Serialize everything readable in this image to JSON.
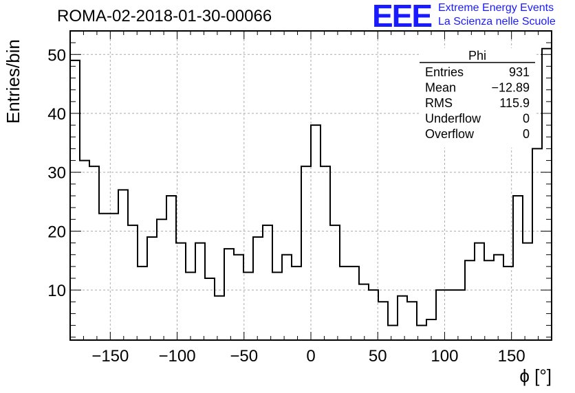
{
  "header": {
    "run_title": "ROMA-02-2018-01-30-00066",
    "logo_mark": "EEE",
    "logo_line1": "Extreme Energy Events",
    "logo_line2": "La Scienza nelle Scuole",
    "logo_color": "#1a1aff"
  },
  "stats": {
    "title": "Phi",
    "rows": [
      {
        "label": "Entries",
        "value": "931"
      },
      {
        "label": "Mean",
        "value": "−12.89"
      },
      {
        "label": "RMS",
        "value": "115.9"
      },
      {
        "label": "Underflow",
        "value": "0"
      },
      {
        "label": "Overflow",
        "value": "0"
      }
    ]
  },
  "chart_data": {
    "type": "histogram",
    "xlabel": "ϕ [°]",
    "ylabel": "Entries/bin",
    "xlim": [
      -180,
      180
    ],
    "ylim": [
      1.5,
      54
    ],
    "grid": true,
    "bin_width": 7.2,
    "x_ticks": [
      -150,
      -100,
      -50,
      0,
      50,
      100,
      150
    ],
    "x_tick_labels": [
      "−150",
      "−100",
      "−50",
      "0",
      "50",
      "100",
      "150"
    ],
    "y_ticks": [
      10,
      20,
      30,
      40,
      50
    ],
    "y_tick_labels": [
      "10",
      "20",
      "30",
      "40",
      "50"
    ],
    "values": [
      49,
      32,
      31,
      23,
      23,
      27,
      21,
      14,
      19,
      22,
      26,
      18,
      13,
      18,
      12,
      9,
      17,
      16,
      13,
      19,
      21,
      13,
      16,
      14,
      31,
      38,
      31,
      21,
      14,
      14,
      11,
      10,
      8,
      4,
      9,
      8,
      4,
      5,
      10,
      10,
      10,
      15,
      18,
      15,
      16,
      14,
      26,
      18,
      34,
      51
    ],
    "line_color": "#000000",
    "grid_color": "#aaaaaa"
  }
}
